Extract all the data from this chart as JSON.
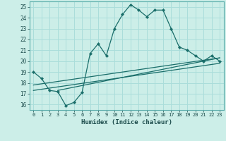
{
  "xlabel": "Humidex (Indice chaleur)",
  "bg_color": "#cceee8",
  "grid_color": "#aaddda",
  "line_color": "#1a6e6a",
  "xlim": [
    -0.5,
    23.5
  ],
  "ylim": [
    15.5,
    25.5
  ],
  "xticks": [
    0,
    1,
    2,
    3,
    4,
    5,
    6,
    7,
    8,
    9,
    10,
    11,
    12,
    13,
    14,
    15,
    16,
    17,
    18,
    19,
    20,
    21,
    22,
    23
  ],
  "yticks": [
    16,
    17,
    18,
    19,
    20,
    21,
    22,
    23,
    24,
    25
  ],
  "curve1_x": [
    0,
    1,
    2,
    3,
    4,
    5,
    6,
    7,
    8,
    9,
    10,
    11,
    12,
    13,
    14,
    15,
    16,
    17,
    18,
    19,
    20,
    21,
    22,
    23
  ],
  "curve1_y": [
    19.0,
    18.4,
    17.3,
    17.2,
    15.9,
    16.2,
    17.1,
    20.7,
    21.6,
    20.5,
    23.0,
    24.3,
    25.2,
    24.7,
    24.1,
    24.7,
    24.7,
    23.0,
    21.3,
    21.0,
    20.5,
    20.0,
    20.5,
    20.0
  ],
  "line2_x": [
    0,
    23
  ],
  "line2_y": [
    17.8,
    20.3
  ],
  "line3_x": [
    0,
    23
  ],
  "line3_y": [
    17.3,
    19.8
  ],
  "line4_x": [
    3,
    23
  ],
  "line4_y": [
    17.3,
    20.3
  ]
}
